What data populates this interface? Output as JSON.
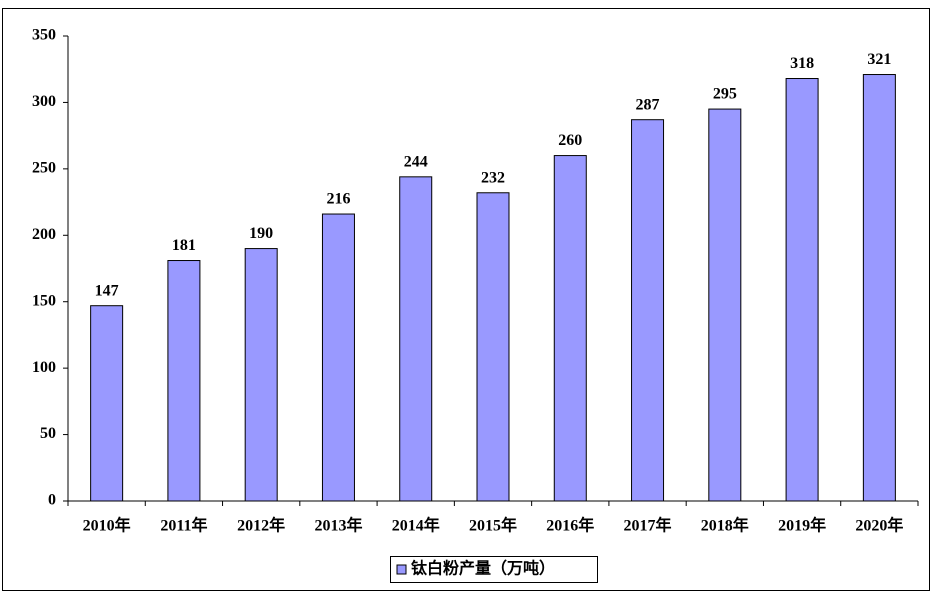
{
  "chart_data": {
    "type": "bar",
    "categories": [
      "2010年",
      "2011年",
      "2012年",
      "2013年",
      "2014年",
      "2015年",
      "2016年",
      "2017年",
      "2018年",
      "2019年",
      "2020年"
    ],
    "series": [
      {
        "name": "钛白粉产量（万吨）",
        "color": "#9999ff",
        "values": [
          147,
          181,
          190,
          216,
          244,
          232,
          260,
          287,
          295,
          318,
          321
        ]
      }
    ],
    "ylim": [
      0,
      350
    ],
    "yticks": [
      0,
      50,
      100,
      150,
      200,
      250,
      300,
      350
    ],
    "grid": false,
    "legend": "bottom",
    "data_labels": true
  }
}
